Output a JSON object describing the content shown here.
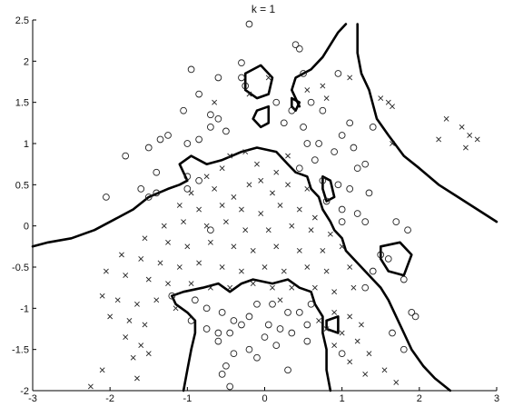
{
  "chart_data": {
    "type": "scatter",
    "title": "k = 1",
    "xlabel": "",
    "ylabel": "",
    "xlim": [
      -3,
      3
    ],
    "ylim": [
      -2,
      2.5
    ],
    "xticks": [
      -3,
      -2,
      -1,
      0,
      1,
      2,
      3
    ],
    "yticks": [
      -2,
      -1.5,
      -1,
      -0.5,
      0,
      0.5,
      1,
      1.5,
      2,
      2.5
    ],
    "grid": false,
    "series": [
      {
        "marker": "circle",
        "points": [
          [
            -0.2,
            2.45
          ],
          [
            0.4,
            2.2
          ],
          [
            0.45,
            2.15
          ],
          [
            -0.3,
            1.98
          ],
          [
            -0.95,
            1.9
          ],
          [
            -0.6,
            1.8
          ],
          [
            -0.3,
            1.8
          ],
          [
            0.5,
            1.85
          ],
          [
            0.95,
            1.85
          ],
          [
            -0.25,
            1.7
          ],
          [
            -0.85,
            1.6
          ],
          [
            0.15,
            1.5
          ],
          [
            0.35,
            1.4
          ],
          [
            0.6,
            1.5
          ],
          [
            0.75,
            1.4
          ],
          [
            1.1,
            1.25
          ],
          [
            1.4,
            1.2
          ],
          [
            -1.05,
            1.4
          ],
          [
            -0.7,
            1.35
          ],
          [
            -0.6,
            1.3
          ],
          [
            -0.7,
            1.2
          ],
          [
            -0.5,
            1.15
          ],
          [
            0.25,
            1.25
          ],
          [
            0.5,
            1.2
          ],
          [
            -1.35,
            1.05
          ],
          [
            -1.25,
            1.1
          ],
          [
            -1.0,
            1.0
          ],
          [
            -0.85,
            1.05
          ],
          [
            -1.5,
            0.95
          ],
          [
            -1.8,
            0.85
          ],
          [
            0.55,
            1.0
          ],
          [
            0.7,
            1.0
          ],
          [
            0.9,
            0.9
          ],
          [
            1.0,
            1.1
          ],
          [
            1.15,
            0.95
          ],
          [
            -1.4,
            0.65
          ],
          [
            -1.0,
            0.6
          ],
          [
            -0.85,
            0.55
          ],
          [
            0.45,
            0.7
          ],
          [
            0.65,
            0.8
          ],
          [
            1.2,
            0.7
          ],
          [
            1.3,
            0.75
          ],
          [
            -1.6,
            0.45
          ],
          [
            -2.05,
            0.35
          ],
          [
            -1.4,
            0.4
          ],
          [
            -1.0,
            0.45
          ],
          [
            0.75,
            0.55
          ],
          [
            0.95,
            0.5
          ],
          [
            1.1,
            0.45
          ],
          [
            1.35,
            0.4
          ],
          [
            -1.5,
            0.35
          ],
          [
            0.8,
            0.3
          ],
          [
            1.0,
            0.2
          ],
          [
            1.2,
            0.15
          ],
          [
            1.3,
            0.05
          ],
          [
            1.7,
            0.05
          ],
          [
            1.85,
            -0.05
          ],
          [
            1.0,
            0.05
          ],
          [
            1.5,
            -0.35
          ],
          [
            1.6,
            -0.4
          ],
          [
            1.4,
            -0.55
          ],
          [
            1.8,
            -0.65
          ],
          [
            1.3,
            -0.75
          ],
          [
            1.9,
            -1.05
          ],
          [
            1.95,
            -1.1
          ],
          [
            -1.2,
            -0.85
          ],
          [
            -0.9,
            -0.9
          ],
          [
            -0.75,
            -1.0
          ],
          [
            -0.55,
            -1.05
          ],
          [
            -0.4,
            -1.15
          ],
          [
            -0.2,
            -1.1
          ],
          [
            -0.1,
            -0.95
          ],
          [
            0.1,
            -0.95
          ],
          [
            0.3,
            -1.05
          ],
          [
            0.45,
            -1.05
          ],
          [
            0.6,
            -0.95
          ],
          [
            -0.95,
            -1.15
          ],
          [
            -0.75,
            -1.25
          ],
          [
            -0.6,
            -1.3
          ],
          [
            -0.45,
            -1.3
          ],
          [
            -0.3,
            -1.2
          ],
          [
            0.05,
            -1.2
          ],
          [
            0.2,
            -1.25
          ],
          [
            0.35,
            -1.3
          ],
          [
            0.55,
            -1.2
          ],
          [
            -0.6,
            -1.4
          ],
          [
            -0.4,
            -1.55
          ],
          [
            -0.2,
            -1.5
          ],
          [
            0.0,
            -1.35
          ],
          [
            0.15,
            -1.45
          ],
          [
            -0.5,
            -1.7
          ],
          [
            -0.55,
            -1.8
          ],
          [
            -0.1,
            -1.6
          ],
          [
            0.3,
            -1.75
          ],
          [
            -0.45,
            -1.95
          ],
          [
            1.0,
            -1.55
          ],
          [
            1.65,
            -1.3
          ],
          [
            1.8,
            -1.5
          ],
          [
            0.55,
            -1.4
          ],
          [
            -0.7,
            -0.05
          ]
        ]
      },
      {
        "marker": "x",
        "points": [
          [
            0.55,
            1.65
          ],
          [
            0.75,
            1.7
          ],
          [
            1.1,
            1.8
          ],
          [
            1.5,
            1.55
          ],
          [
            1.6,
            1.5
          ],
          [
            1.65,
            1.45
          ],
          [
            2.35,
            1.3
          ],
          [
            2.55,
            1.2
          ],
          [
            2.65,
            1.1
          ],
          [
            2.75,
            1.05
          ],
          [
            2.6,
            0.95
          ],
          [
            2.25,
            1.05
          ],
          [
            1.65,
            1.0
          ],
          [
            -0.65,
            1.5
          ],
          [
            0.05,
            1.8
          ],
          [
            -0.2,
            1.6
          ],
          [
            0.8,
            1.55
          ],
          [
            -0.45,
            0.85
          ],
          [
            -0.25,
            0.9
          ],
          [
            -0.1,
            0.75
          ],
          [
            0.15,
            0.65
          ],
          [
            -0.55,
            0.7
          ],
          [
            -0.75,
            0.6
          ],
          [
            -0.95,
            0.4
          ],
          [
            -0.65,
            0.45
          ],
          [
            -0.4,
            0.35
          ],
          [
            -0.2,
            0.5
          ],
          [
            0.1,
            0.4
          ],
          [
            0.3,
            0.5
          ],
          [
            0.55,
            0.45
          ],
          [
            -1.1,
            0.25
          ],
          [
            -0.85,
            0.2
          ],
          [
            -0.55,
            0.25
          ],
          [
            -0.3,
            0.2
          ],
          [
            -0.05,
            0.15
          ],
          [
            0.2,
            0.25
          ],
          [
            0.45,
            0.2
          ],
          [
            0.65,
            0.1
          ],
          [
            -1.3,
            0.0
          ],
          [
            -1.05,
            0.05
          ],
          [
            -0.75,
            0.0
          ],
          [
            -0.5,
            0.05
          ],
          [
            -0.25,
            -0.05
          ],
          [
            0.05,
            -0.05
          ],
          [
            0.35,
            0.0
          ],
          [
            0.6,
            -0.05
          ],
          [
            0.85,
            -0.1
          ],
          [
            -1.55,
            -0.15
          ],
          [
            -1.25,
            -0.2
          ],
          [
            -1.0,
            -0.25
          ],
          [
            -0.7,
            -0.2
          ],
          [
            -0.4,
            -0.25
          ],
          [
            -0.15,
            -0.3
          ],
          [
            0.15,
            -0.25
          ],
          [
            0.45,
            -0.3
          ],
          [
            0.75,
            -0.3
          ],
          [
            1.0,
            -0.25
          ],
          [
            -1.85,
            -0.35
          ],
          [
            -1.6,
            -0.4
          ],
          [
            -1.35,
            -0.45
          ],
          [
            -1.1,
            -0.5
          ],
          [
            -0.85,
            -0.45
          ],
          [
            -0.55,
            -0.5
          ],
          [
            -0.3,
            -0.55
          ],
          [
            0.0,
            -0.5
          ],
          [
            0.25,
            -0.55
          ],
          [
            0.55,
            -0.5
          ],
          [
            0.8,
            -0.55
          ],
          [
            1.1,
            -0.5
          ],
          [
            -2.05,
            -0.55
          ],
          [
            -1.8,
            -0.6
          ],
          [
            -1.5,
            -0.65
          ],
          [
            -1.25,
            -0.7
          ],
          [
            -0.95,
            -0.7
          ],
          [
            -0.7,
            -0.75
          ],
          [
            -0.45,
            -0.75
          ],
          [
            -0.15,
            -0.7
          ],
          [
            0.1,
            -0.75
          ],
          [
            0.35,
            -0.75
          ],
          [
            0.65,
            -0.75
          ],
          [
            0.9,
            -0.8
          ],
          [
            1.15,
            -0.75
          ],
          [
            -2.1,
            -0.85
          ],
          [
            -1.9,
            -0.9
          ],
          [
            -1.65,
            -0.95
          ],
          [
            -1.4,
            -0.9
          ],
          [
            -1.15,
            -1.0
          ],
          [
            -2.0,
            -1.1
          ],
          [
            -1.75,
            -1.15
          ],
          [
            -1.55,
            -1.2
          ],
          [
            -1.8,
            -1.35
          ],
          [
            -1.6,
            -1.45
          ],
          [
            -1.5,
            -1.55
          ],
          [
            -1.7,
            -1.6
          ],
          [
            -2.1,
            -1.75
          ],
          [
            -1.65,
            -1.85
          ],
          [
            -2.25,
            -1.95
          ],
          [
            0.9,
            -1.05
          ],
          [
            1.1,
            -1.1
          ],
          [
            1.25,
            -1.2
          ],
          [
            0.8,
            -1.25
          ],
          [
            1.0,
            -1.3
          ],
          [
            1.2,
            -1.4
          ],
          [
            0.9,
            -1.45
          ],
          [
            1.35,
            -1.55
          ],
          [
            1.1,
            -1.65
          ],
          [
            1.55,
            -1.75
          ],
          [
            1.3,
            -1.8
          ],
          [
            1.7,
            -1.9
          ],
          [
            0.7,
            -1.15
          ],
          [
            0.2,
            -0.9
          ],
          [
            -0.05,
            0.55
          ],
          [
            0.3,
            0.85
          ]
        ]
      }
    ],
    "boundaries": [
      [
        [
          -3,
          -0.25
        ],
        [
          -2.8,
          -0.2
        ],
        [
          -2.5,
          -0.15
        ],
        [
          -2.2,
          -0.05
        ],
        [
          -1.9,
          0.1
        ],
        [
          -1.7,
          0.2
        ],
        [
          -1.5,
          0.35
        ],
        [
          -1.25,
          0.45
        ],
        [
          -1.1,
          0.5
        ],
        [
          -1.0,
          0.55
        ],
        [
          -1.1,
          0.75
        ],
        [
          -0.95,
          0.85
        ],
        [
          -0.75,
          0.75
        ],
        [
          -0.55,
          0.8
        ],
        [
          -0.3,
          0.9
        ],
        [
          -0.1,
          0.95
        ],
        [
          0.15,
          0.9
        ],
        [
          0.3,
          0.75
        ],
        [
          0.4,
          0.65
        ],
        [
          0.55,
          0.6
        ],
        [
          0.6,
          0.45
        ],
        [
          0.7,
          0.35
        ],
        [
          0.75,
          0.2
        ],
        [
          0.85,
          0.05
        ],
        [
          0.9,
          -0.05
        ],
        [
          1.0,
          -0.15
        ],
        [
          1.05,
          -0.3
        ],
        [
          1.2,
          -0.45
        ],
        [
          1.35,
          -0.6
        ],
        [
          1.5,
          -0.75
        ],
        [
          1.6,
          -0.9
        ],
        [
          1.7,
          -1.1
        ],
        [
          1.8,
          -1.3
        ],
        [
          1.9,
          -1.5
        ],
        [
          2.05,
          -1.7
        ],
        [
          2.2,
          -1.85
        ],
        [
          2.4,
          -2.0
        ]
      ],
      [
        [
          -1.05,
          -2.0
        ],
        [
          -1.0,
          -1.75
        ],
        [
          -0.95,
          -1.5
        ],
        [
          -0.9,
          -1.3
        ],
        [
          -0.9,
          -1.15
        ],
        [
          -1.0,
          -1.05
        ],
        [
          -1.15,
          -0.95
        ],
        [
          -1.2,
          -0.85
        ],
        [
          -1.05,
          -0.8
        ],
        [
          -0.8,
          -0.75
        ],
        [
          -0.6,
          -0.7
        ],
        [
          -0.45,
          -0.8
        ],
        [
          -0.3,
          -0.7
        ],
        [
          -0.15,
          -0.65
        ],
        [
          0.1,
          -0.7
        ],
        [
          0.3,
          -0.65
        ],
        [
          0.45,
          -0.75
        ],
        [
          0.6,
          -0.8
        ],
        [
          0.65,
          -0.95
        ],
        [
          0.75,
          -1.1
        ],
        [
          0.75,
          -1.3
        ],
        [
          0.8,
          -1.5
        ],
        [
          0.8,
          -1.75
        ],
        [
          0.85,
          -2.0
        ]
      ],
      [
        [
          0.45,
          1.45
        ],
        [
          0.35,
          1.65
        ],
        [
          0.4,
          1.8
        ],
        [
          0.6,
          1.9
        ],
        [
          0.75,
          2.05
        ],
        [
          0.85,
          2.2
        ],
        [
          0.95,
          2.35
        ],
        [
          1.05,
          2.45
        ]
      ],
      [
        [
          1.2,
          2.45
        ],
        [
          1.2,
          2.1
        ],
        [
          1.25,
          1.85
        ],
        [
          1.35,
          1.65
        ],
        [
          1.45,
          1.3
        ],
        [
          1.6,
          1.1
        ],
        [
          1.8,
          0.85
        ],
        [
          2.0,
          0.7
        ],
        [
          2.25,
          0.5
        ],
        [
          2.5,
          0.35
        ],
        [
          2.75,
          0.2
        ],
        [
          3.0,
          0.05
        ]
      ],
      [
        [
          -0.25,
          1.85
        ],
        [
          -0.05,
          1.95
        ],
        [
          0.1,
          1.8
        ],
        [
          0.05,
          1.6
        ],
        [
          -0.1,
          1.55
        ],
        [
          -0.25,
          1.65
        ],
        [
          -0.25,
          1.85
        ]
      ],
      [
        [
          -0.1,
          1.4
        ],
        [
          0.05,
          1.45
        ],
        [
          0.05,
          1.25
        ],
        [
          -0.05,
          1.2
        ],
        [
          -0.15,
          1.3
        ],
        [
          -0.1,
          1.4
        ]
      ],
      [
        [
          1.5,
          -0.25
        ],
        [
          1.75,
          -0.2
        ],
        [
          1.9,
          -0.35
        ],
        [
          1.8,
          -0.6
        ],
        [
          1.6,
          -0.55
        ],
        [
          1.5,
          -0.4
        ],
        [
          1.5,
          -0.25
        ]
      ],
      [
        [
          0.8,
          -1.15
        ],
        [
          0.95,
          -1.1
        ],
        [
          0.95,
          -1.3
        ],
        [
          0.8,
          -1.25
        ],
        [
          0.8,
          -1.15
        ]
      ],
      [
        [
          0.75,
          0.6
        ],
        [
          0.85,
          0.55
        ],
        [
          0.9,
          0.35
        ],
        [
          0.8,
          0.3
        ],
        [
          0.75,
          0.45
        ],
        [
          0.75,
          0.6
        ]
      ],
      [
        [
          0.35,
          1.55
        ],
        [
          0.45,
          1.5
        ],
        [
          0.4,
          1.4
        ],
        [
          0.35,
          1.45
        ],
        [
          0.35,
          1.55
        ]
      ]
    ]
  }
}
